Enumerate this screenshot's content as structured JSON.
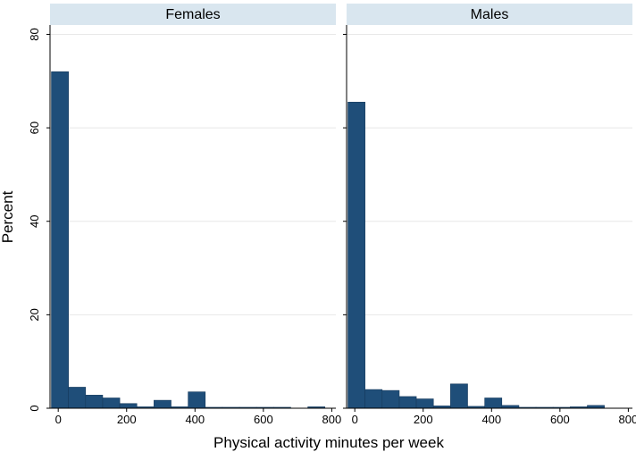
{
  "chart_data": {
    "type": "bar",
    "subtype": "histogram",
    "ylabel": "Percent",
    "xlabel": "Physical activity minutes per week",
    "ylim": [
      0,
      82
    ],
    "xlim": [
      -24,
      812
    ],
    "yticks": [
      0,
      20,
      40,
      60,
      80
    ],
    "xticks": [
      0,
      200,
      400,
      600,
      800
    ],
    "bin_width": 50,
    "grid": true,
    "bar_color": "#1f4e79",
    "strip_color": "#d9e6ef",
    "panels": [
      {
        "title": "Females",
        "bins": [
          {
            "start": -20,
            "end": 30,
            "value": 72.0
          },
          {
            "start": 30,
            "end": 80,
            "value": 4.5
          },
          {
            "start": 80,
            "end": 130,
            "value": 2.8
          },
          {
            "start": 130,
            "end": 180,
            "value": 2.2
          },
          {
            "start": 180,
            "end": 230,
            "value": 1.0
          },
          {
            "start": 230,
            "end": 280,
            "value": 0.3
          },
          {
            "start": 280,
            "end": 330,
            "value": 1.7
          },
          {
            "start": 330,
            "end": 380,
            "value": 0.3
          },
          {
            "start": 380,
            "end": 430,
            "value": 3.5
          },
          {
            "start": 430,
            "end": 480,
            "value": 0.2
          },
          {
            "start": 480,
            "end": 530,
            "value": 0.2
          },
          {
            "start": 530,
            "end": 580,
            "value": 0.2
          },
          {
            "start": 580,
            "end": 630,
            "value": 0.2
          },
          {
            "start": 630,
            "end": 680,
            "value": 0.2
          },
          {
            "start": 680,
            "end": 730,
            "value": 0.0
          },
          {
            "start": 730,
            "end": 780,
            "value": 0.3
          }
        ]
      },
      {
        "title": "Males",
        "bins": [
          {
            "start": -20,
            "end": 30,
            "value": 65.5
          },
          {
            "start": 30,
            "end": 80,
            "value": 4.0
          },
          {
            "start": 80,
            "end": 130,
            "value": 3.8
          },
          {
            "start": 130,
            "end": 180,
            "value": 2.5
          },
          {
            "start": 180,
            "end": 230,
            "value": 2.0
          },
          {
            "start": 230,
            "end": 280,
            "value": 0.5
          },
          {
            "start": 280,
            "end": 330,
            "value": 5.2
          },
          {
            "start": 330,
            "end": 380,
            "value": 0.4
          },
          {
            "start": 380,
            "end": 430,
            "value": 2.2
          },
          {
            "start": 430,
            "end": 480,
            "value": 0.6
          },
          {
            "start": 480,
            "end": 530,
            "value": 0.2
          },
          {
            "start": 530,
            "end": 580,
            "value": 0.2
          },
          {
            "start": 580,
            "end": 630,
            "value": 0.2
          },
          {
            "start": 630,
            "end": 680,
            "value": 0.3
          },
          {
            "start": 680,
            "end": 730,
            "value": 0.6
          }
        ]
      }
    ]
  }
}
